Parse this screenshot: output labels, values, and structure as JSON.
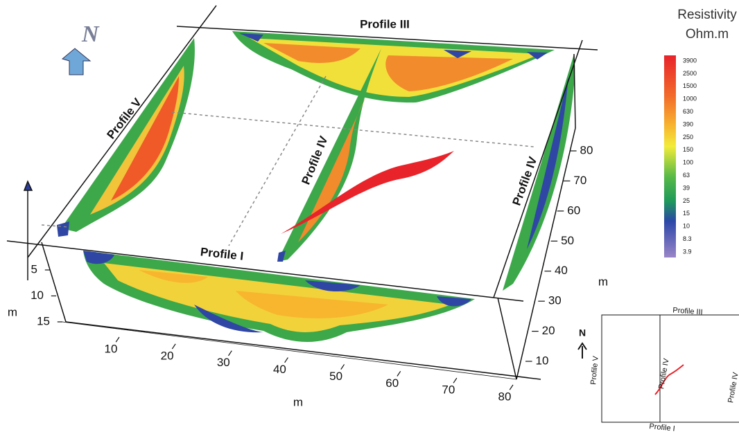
{
  "north": "N",
  "profiles": {
    "back": "Profile III",
    "left": "Profile V",
    "center": "Profile IV",
    "right": "Profile IV",
    "front": "Profile I"
  },
  "legend": {
    "title": "Resistivity",
    "unit": "Ohm.m",
    "ticks": [
      3900,
      2500,
      1500,
      1000,
      630,
      390,
      250,
      150,
      100,
      63,
      39,
      25,
      15,
      10,
      8.3,
      3.9
    ]
  },
  "x_axis": {
    "ticks": [
      10,
      20,
      30,
      40,
      50,
      60,
      70,
      80
    ],
    "unit": "m"
  },
  "y_axis": {
    "ticks": [
      80,
      70,
      60,
      50,
      40,
      30,
      20,
      10
    ],
    "unit": "m"
  },
  "depth_axis": {
    "ticks": [
      5,
      10,
      15
    ],
    "unit": "m"
  },
  "inset": {
    "north": "N",
    "back": "Profile III",
    "left": "Profile V",
    "center": "Profile IV",
    "right": "Profile IV",
    "front": "Profile I"
  }
}
